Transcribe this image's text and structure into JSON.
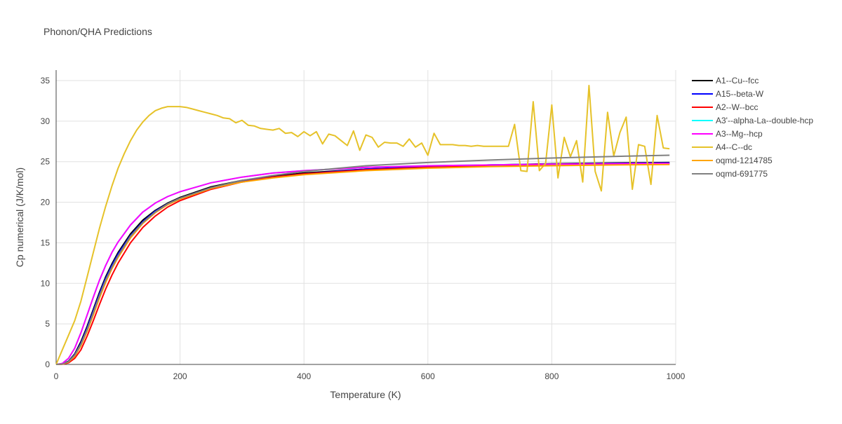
{
  "chart_data": {
    "type": "line",
    "title": "Phonon/QHA Predictions",
    "xlabel": "Temperature (K)",
    "ylabel": "Cp numerical (J/K/mol)",
    "xlim": [
      0,
      1000
    ],
    "ylim": [
      0,
      36.3
    ],
    "xticks": [
      0,
      200,
      400,
      600,
      800,
      1000
    ],
    "yticks": [
      0,
      5,
      10,
      15,
      20,
      25,
      30,
      35
    ],
    "grid": true,
    "legend_position": "right",
    "series": [
      {
        "name": "A1--Cu--fcc",
        "color": "#000000",
        "x": [
          0,
          10,
          20,
          30,
          40,
          50,
          60,
          70,
          80,
          90,
          100,
          120,
          140,
          160,
          180,
          200,
          250,
          300,
          350,
          400,
          500,
          600,
          700,
          800,
          900,
          990
        ],
        "y": [
          0,
          0.05,
          0.4,
          1.3,
          2.8,
          4.7,
          6.8,
          8.9,
          10.8,
          12.4,
          13.8,
          16.1,
          17.8,
          19.0,
          19.9,
          20.6,
          21.9,
          22.7,
          23.2,
          23.6,
          24.1,
          24.4,
          24.6,
          24.75,
          24.85,
          24.9
        ]
      },
      {
        "name": "A15--beta-W",
        "color": "#0000ff",
        "x": [
          0,
          10,
          20,
          30,
          40,
          50,
          60,
          70,
          80,
          90,
          100,
          120,
          140,
          160,
          180,
          200,
          250,
          300,
          350,
          400,
          500,
          600,
          700,
          800,
          900,
          990
        ],
        "y": [
          0,
          0.04,
          0.35,
          1.2,
          2.6,
          4.5,
          6.6,
          8.7,
          10.6,
          12.2,
          13.6,
          15.9,
          17.6,
          18.9,
          19.8,
          20.5,
          21.8,
          22.6,
          23.1,
          23.5,
          24.1,
          24.4,
          24.6,
          24.7,
          24.8,
          24.85
        ]
      },
      {
        "name": "A2--W--bcc",
        "color": "#ff0000",
        "x": [
          0,
          10,
          20,
          30,
          40,
          50,
          60,
          70,
          80,
          90,
          100,
          120,
          140,
          160,
          180,
          200,
          250,
          300,
          350,
          400,
          500,
          600,
          700,
          800,
          900,
          990
        ],
        "y": [
          0,
          0.02,
          0.2,
          0.75,
          1.8,
          3.5,
          5.4,
          7.4,
          9.3,
          11.0,
          12.5,
          15.0,
          16.9,
          18.3,
          19.4,
          20.2,
          21.6,
          22.5,
          23.1,
          23.5,
          24.0,
          24.3,
          24.5,
          24.6,
          24.65,
          24.7
        ]
      },
      {
        "name": "A3'--alpha-La--double-hcp",
        "color": "#00ffff",
        "x": [
          0,
          10,
          20,
          30,
          40,
          50,
          60,
          70,
          80,
          90,
          100,
          120,
          140,
          160,
          180,
          200,
          250,
          300,
          350,
          400,
          500,
          600,
          700,
          800,
          900,
          990
        ],
        "y": [
          0,
          0.12,
          0.75,
          2.0,
          3.9,
          6.1,
          8.3,
          10.4,
          12.2,
          13.8,
          15.1,
          17.2,
          18.8,
          19.9,
          20.7,
          21.3,
          22.4,
          23.1,
          23.6,
          23.9,
          24.3,
          24.5,
          24.6,
          24.7,
          24.75,
          24.8
        ]
      },
      {
        "name": "A3--Mg--hcp",
        "color": "#ff00ff",
        "x": [
          0,
          10,
          20,
          30,
          40,
          50,
          60,
          70,
          80,
          90,
          100,
          120,
          140,
          160,
          180,
          200,
          250,
          300,
          350,
          400,
          500,
          600,
          700,
          800,
          900,
          990
        ],
        "y": [
          0,
          0.12,
          0.75,
          2.0,
          3.9,
          6.1,
          8.3,
          10.4,
          12.2,
          13.8,
          15.1,
          17.2,
          18.8,
          19.9,
          20.7,
          21.3,
          22.4,
          23.1,
          23.6,
          23.9,
          24.3,
          24.5,
          24.6,
          24.7,
          24.75,
          24.8
        ]
      },
      {
        "name": "A4--C--dc",
        "color": "#e6c229",
        "x": [
          0,
          10,
          20,
          30,
          40,
          50,
          60,
          70,
          80,
          90,
          100,
          110,
          120,
          130,
          140,
          150,
          160,
          170,
          180,
          190,
          200,
          210,
          220,
          230,
          240,
          250,
          260,
          270,
          280,
          290,
          300,
          310,
          320,
          330,
          340,
          350,
          360,
          370,
          380,
          390,
          400,
          410,
          420,
          430,
          440,
          450,
          460,
          470,
          480,
          490,
          500,
          510,
          520,
          530,
          540,
          550,
          560,
          570,
          580,
          590,
          600,
          610,
          620,
          630,
          640,
          650,
          660,
          670,
          680,
          690,
          700,
          710,
          720,
          730,
          740,
          750,
          760,
          770,
          780,
          790,
          800,
          810,
          820,
          830,
          840,
          850,
          860,
          870,
          880,
          890,
          900,
          910,
          920,
          930,
          940,
          950,
          960,
          970,
          980,
          990
        ],
        "y": [
          0,
          1.8,
          3.6,
          5.4,
          7.8,
          10.8,
          13.8,
          16.8,
          19.5,
          22.0,
          24.2,
          26.0,
          27.6,
          28.9,
          29.9,
          30.7,
          31.3,
          31.6,
          31.8,
          31.8,
          31.8,
          31.7,
          31.5,
          31.3,
          31.1,
          30.9,
          30.7,
          30.4,
          30.3,
          29.8,
          30.1,
          29.5,
          29.4,
          29.1,
          29.0,
          28.9,
          29.1,
          28.5,
          28.6,
          28.1,
          28.7,
          28.2,
          28.7,
          27.2,
          28.4,
          28.2,
          27.6,
          27.0,
          28.8,
          26.4,
          28.3,
          28.0,
          26.8,
          27.4,
          27.3,
          27.3,
          26.9,
          27.8,
          26.8,
          27.3,
          25.8,
          28.5,
          27.1,
          27.1,
          27.1,
          27.0,
          27.0,
          26.9,
          27.0,
          26.9,
          26.9,
          26.9,
          26.9,
          26.9,
          29.6,
          23.9,
          23.8,
          32.4,
          23.9,
          24.8,
          32.0,
          23.0,
          28.0,
          25.6,
          27.6,
          22.5,
          34.4,
          23.8,
          21.4,
          31.1,
          25.7,
          28.6,
          30.5,
          21.6,
          27.1,
          26.9,
          22.2,
          30.7,
          26.7,
          26.6
        ]
      },
      {
        "name": "oqmd-1214785",
        "color": "#ffa500",
        "x": [
          0,
          10,
          20,
          30,
          40,
          50,
          60,
          70,
          80,
          90,
          100,
          120,
          140,
          160,
          180,
          200,
          250,
          300,
          350,
          400,
          500,
          600,
          700,
          800,
          900,
          990
        ],
        "y": [
          0,
          0.03,
          0.3,
          1.0,
          2.3,
          4.1,
          6.1,
          8.2,
          10.1,
          11.8,
          13.2,
          15.6,
          17.4,
          18.7,
          19.7,
          20.4,
          21.7,
          22.5,
          23.0,
          23.4,
          23.9,
          24.2,
          24.4,
          24.5,
          24.6,
          24.65
        ]
      },
      {
        "name": "oqmd-691775",
        "color": "#808080",
        "x": [
          0,
          10,
          20,
          30,
          40,
          50,
          60,
          70,
          80,
          90,
          100,
          120,
          140,
          160,
          180,
          200,
          250,
          300,
          350,
          400,
          500,
          600,
          700,
          800,
          900,
          990
        ],
        "y": [
          0,
          0.04,
          0.35,
          1.15,
          2.5,
          4.3,
          6.4,
          8.5,
          10.4,
          12.0,
          13.4,
          15.8,
          17.5,
          18.8,
          19.8,
          20.5,
          21.8,
          22.7,
          23.3,
          23.8,
          24.5,
          24.9,
          25.2,
          25.45,
          25.65,
          25.8
        ]
      }
    ]
  }
}
